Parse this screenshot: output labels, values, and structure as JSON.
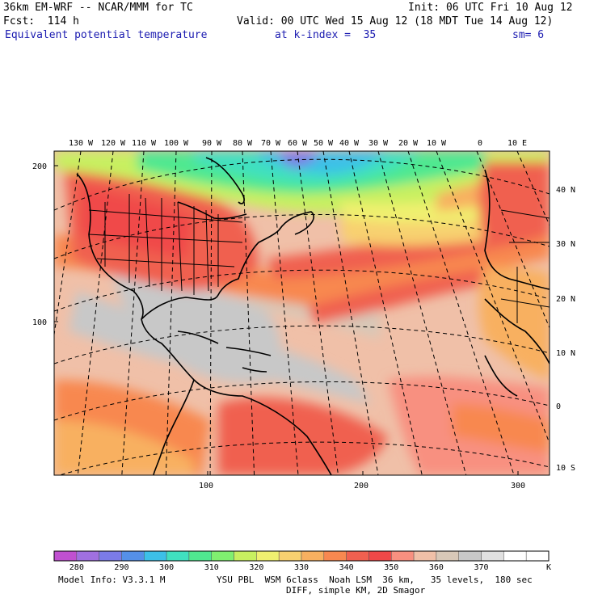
{
  "header": {
    "model": "36km EM-WRF -- NCAR/MMM for TC",
    "init": "Init: 06 UTC Fri 10 Aug 12",
    "fcst": "Fcst:  114 h",
    "valid": "Valid: 00 UTC Wed 15 Aug 12 (18 MDT Tue 14 Aug 12)",
    "field": "Equivalent potential temperature",
    "level": "at k-index =  35",
    "smooth": "sm= 6"
  },
  "top_lon_labels": [
    "130 W",
    "120 W",
    "110 W",
    "100 W",
    "90 W",
    "80 W",
    "70 W",
    "60 W",
    "50 W",
    "40 W",
    "30 W",
    "20 W",
    "10 W",
    "0",
    "10 E"
  ],
  "right_lat_labels": [
    "40 N",
    "30 N",
    "20 N",
    "10 N",
    "0",
    "10 S"
  ],
  "left_grid_labels": [
    "200",
    "100"
  ],
  "bottom_grid_labels": [
    "100",
    "200",
    "300"
  ],
  "colorbar": {
    "colors": [
      "#c050d0",
      "#a070e0",
      "#7b7be8",
      "#5590e8",
      "#3cc0e8",
      "#40e0c0",
      "#50e890",
      "#80f070",
      "#c8f060",
      "#f0f070",
      "#f8d070",
      "#f8b060",
      "#f88850",
      "#f06050",
      "#f04848",
      "#f89080",
      "#f0c0a8",
      "#d8c8b8",
      "#c8c8c8",
      "#e0e0e0",
      "#ffffff",
      "#ffffff"
    ],
    "labels": [
      "280",
      "290",
      "300",
      "310",
      "320",
      "330",
      "340",
      "350",
      "360",
      "370"
    ],
    "unit": "K"
  },
  "footer": {
    "info": "Model Info: V3.3.1 M",
    "physics": "YSU PBL  WSM 6class  Noah LSM  36 km,   35 levels,  180 sec",
    "diff": "DIFF, simple KM, 2D Smagor"
  }
}
